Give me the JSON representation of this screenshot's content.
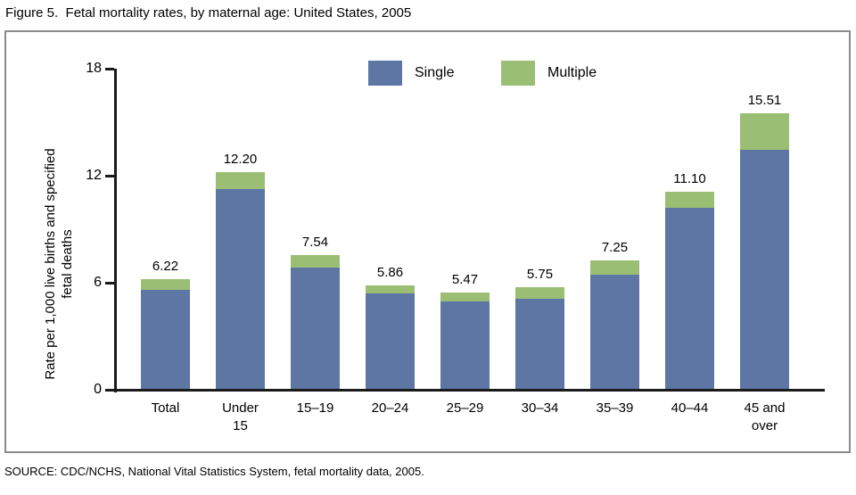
{
  "title": "Figure 5.  Fetal mortality rates, by maternal age: United States, 2005",
  "source": "SOURCE: CDC/NCHS, National Vital Statistics System, fetal mortality data, 2005.",
  "colors": {
    "single": "#5e76a4",
    "multiple": "#9abf74",
    "axis": "#1a1a1a",
    "frame_border": "#8a8a8a"
  },
  "legend": {
    "items": [
      {
        "label": "Single"
      },
      {
        "label": "Multiple"
      }
    ]
  },
  "y_axis": {
    "label_lines": "Rate per 1,000 live births and specified\nfetal deaths"
  },
  "chart_data": {
    "type": "bar",
    "stacked": true,
    "title": "Fetal mortality rates, by maternal age: United States, 2005",
    "xlabel": "",
    "ylabel": "Rate per 1,000 live births and specified fetal deaths",
    "ylim": [
      0,
      18
    ],
    "yticks": [
      0,
      6,
      12,
      18
    ],
    "grid": false,
    "legend_position": "top-center-inside",
    "categories": [
      "Total",
      "Under\n15",
      "15–19",
      "20–24",
      "25–29",
      "30–34",
      "35–39",
      "40–44",
      "45 and\nover"
    ],
    "totals": [
      6.22,
      12.2,
      7.54,
      5.86,
      5.47,
      5.75,
      7.25,
      11.1,
      15.51
    ],
    "total_labels": [
      "6.22",
      "12.20",
      "7.54",
      "5.86",
      "5.47",
      "5.75",
      "7.25",
      "11.10",
      "15.51"
    ],
    "series": [
      {
        "name": "Single",
        "values": [
          5.6,
          11.25,
          6.85,
          5.4,
          4.95,
          5.1,
          6.45,
          10.2,
          13.45
        ]
      },
      {
        "name": "Multiple",
        "values": [
          0.62,
          0.95,
          0.69,
          0.46,
          0.52,
          0.65,
          0.8,
          0.9,
          2.06
        ]
      }
    ]
  }
}
